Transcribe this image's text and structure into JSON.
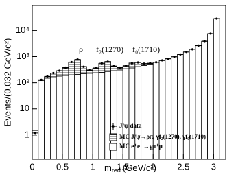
{
  "chart_data": {
    "type": "histogram",
    "y_label": "Events/(0.032 GeV/c²)",
    "x_label": "m",
    "x_label_sub": "red",
    "x_label_unit": "(GeV/c²)",
    "annotations": [
      "ρ",
      "f₂(1270)",
      "f₀(1710)"
    ],
    "bins": [
      0,
      0.1,
      0.2,
      0.3,
      0.4,
      0.5,
      0.6,
      0.7,
      0.8,
      0.9,
      1.0,
      1.1,
      1.2,
      1.3,
      1.4,
      1.5,
      1.6,
      1.7,
      1.8,
      1.9,
      2.0,
      2.1,
      2.2,
      2.3,
      2.4,
      2.5,
      2.6,
      2.7,
      2.8,
      2.9,
      3.0,
      3.1
    ],
    "series": [
      {
        "name": "J/ψ data",
        "color": "#000000",
        "style": "points",
        "values": [
          1.2,
          130,
          175,
          235,
          290,
          380,
          620,
          780,
          410,
          300,
          370,
          560,
          640,
          430,
          380,
          450,
          560,
          600,
          540,
          560,
          610,
          720,
          830,
          990,
          1210,
          1500,
          1900,
          2650,
          3900,
          7600,
          28500
        ]
      },
      {
        "name": "MC J/ψ→ρπ, γf₂(1270), γf₀(1710)",
        "color": "#000000",
        "style": "hatched",
        "values": [
          0,
          0,
          20,
          60,
          100,
          180,
          400,
          550,
          200,
          80,
          120,
          300,
          380,
          150,
          60,
          100,
          200,
          180,
          80,
          20,
          0,
          0,
          0,
          0,
          0,
          0,
          0,
          0,
          0,
          0,
          0
        ]
      },
      {
        "name": "MC e⁺e⁻→γμ⁺μ⁻",
        "color": "#000000",
        "style": "open",
        "values": [
          1.5,
          120,
          150,
          170,
          180,
          190,
          200,
          210,
          220,
          230,
          240,
          250,
          270,
          290,
          310,
          340,
          370,
          410,
          460,
          520,
          600,
          700,
          820,
          980,
          1200,
          1500,
          1900,
          2600,
          3800,
          7500,
          28000
        ]
      }
    ],
    "log_y": true,
    "xlim": [
      0,
      3.2
    ],
    "xticks": [
      0,
      0.5,
      1,
      1.5,
      2,
      2.5,
      3
    ],
    "ylim": [
      0.12,
      90000
    ],
    "yticks": [
      1,
      10,
      {
        "value": 100,
        "label": "10²"
      },
      {
        "value": 1000,
        "label": "10³"
      },
      {
        "value": 10000,
        "label": "10⁴"
      }
    ]
  }
}
